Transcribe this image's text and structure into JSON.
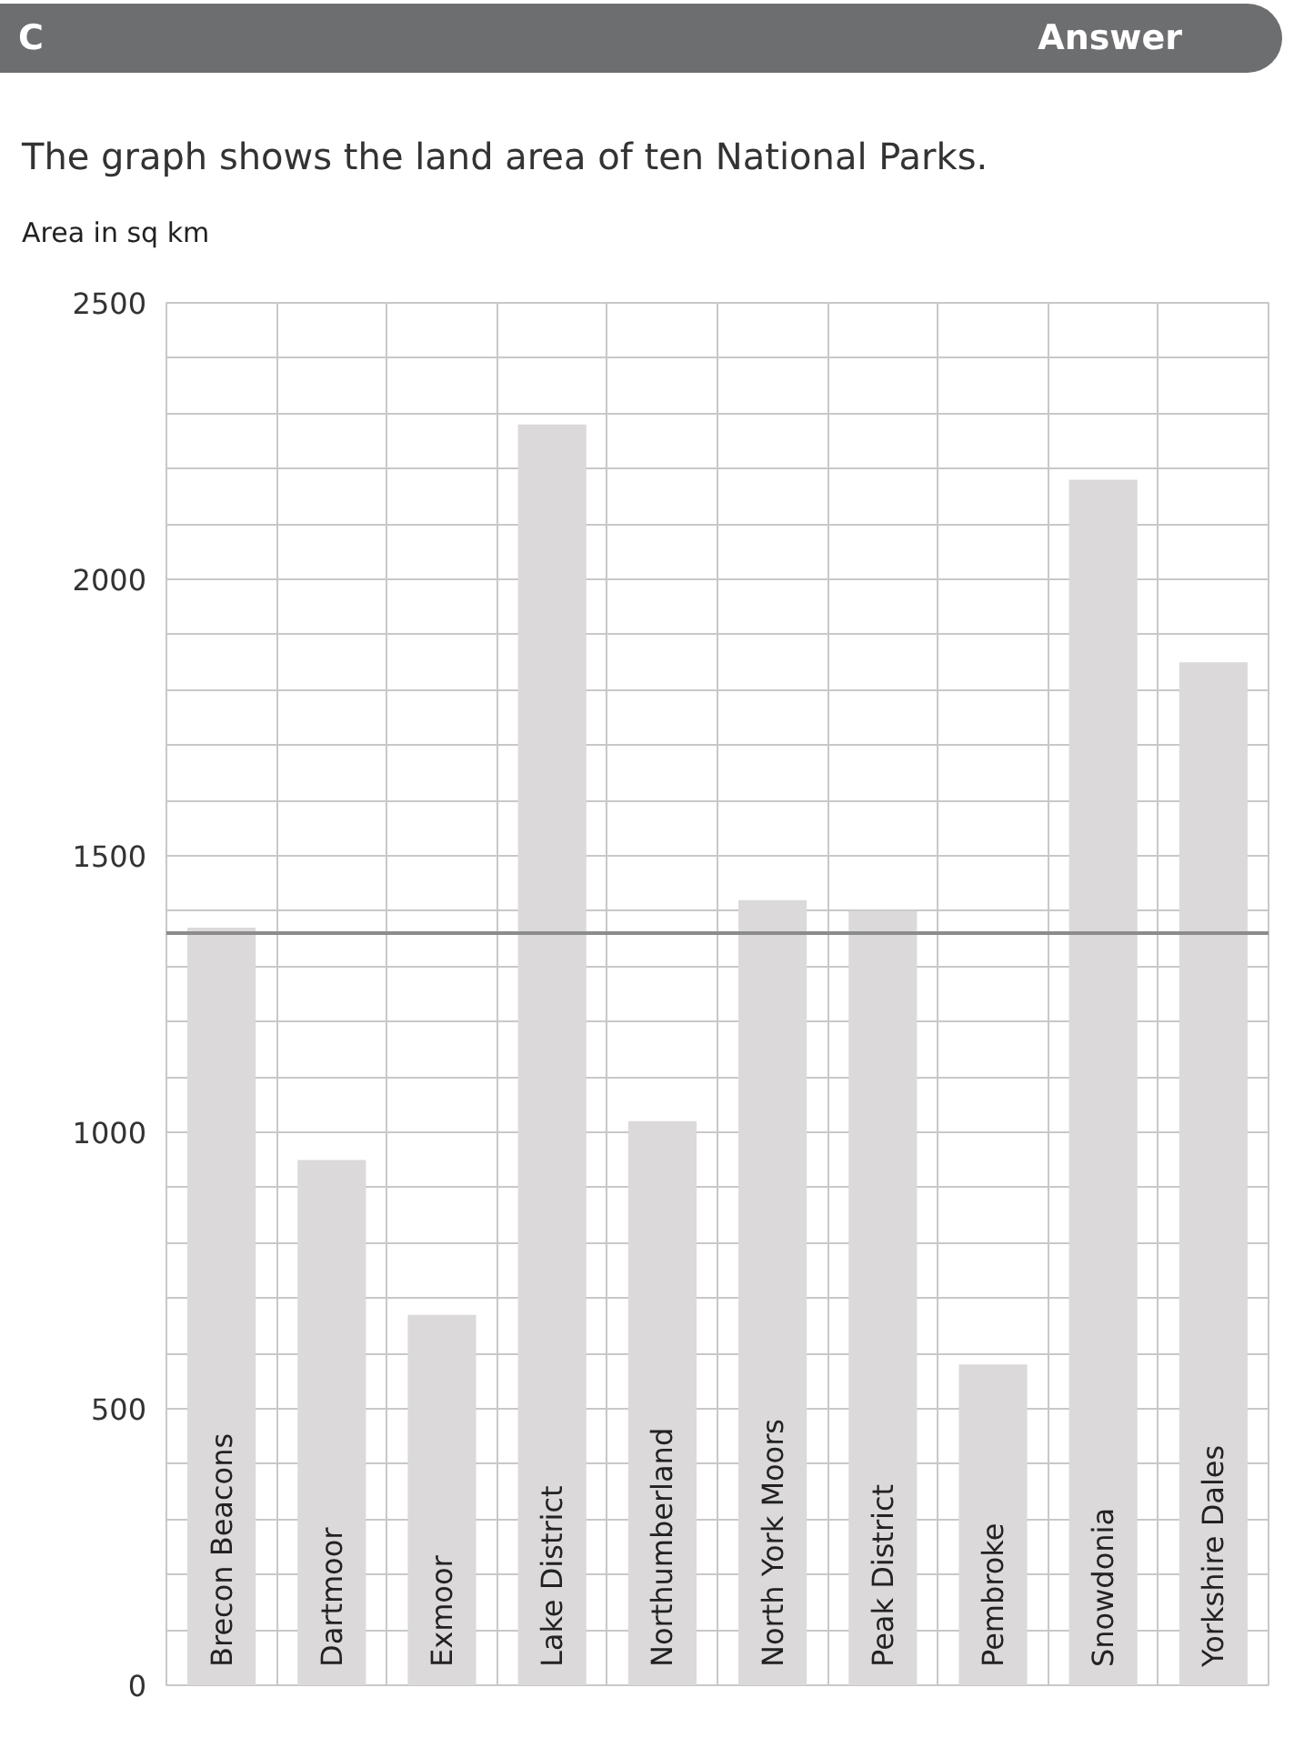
{
  "chart_data": {
    "type": "bar",
    "title": "C",
    "annotations": [
      "Answer"
    ],
    "subtitle": "The graph shows the land area of ten National Parks.",
    "ylabel": "Area in sq km",
    "categories": [
      "Brecon Beacons",
      "Dartmoor",
      "Exmoor",
      "Lake District",
      "Northumberland",
      "North York Moors",
      "Peak District",
      "Pembroke",
      "Snowdonia",
      "Yorkshire Dales"
    ],
    "values": [
      1370,
      950,
      670,
      2280,
      1020,
      1420,
      1400,
      580,
      2180,
      1850
    ],
    "color": "#dbd9da",
    "ylim": [
      0,
      2500
    ],
    "yticks": [
      0,
      500,
      1000,
      1500,
      2000,
      2500
    ],
    "grid": true,
    "ref_lines": [
      {
        "axis": "y",
        "value": 1360,
        "color": "#8c8c8c"
      }
    ]
  }
}
